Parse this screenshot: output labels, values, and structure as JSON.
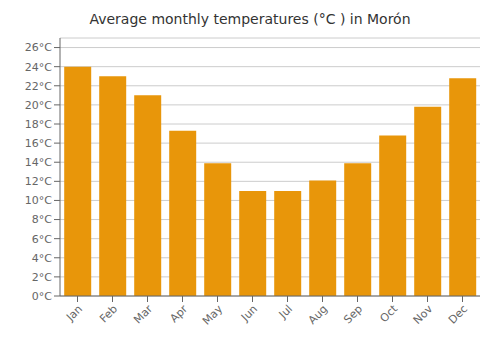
{
  "chart_data": {
    "type": "bar",
    "title": "Average monthly temperatures (°C ) in Morón",
    "categories": [
      "Jan",
      "Feb",
      "Mar",
      "Apr",
      "May",
      "Jun",
      "Jul",
      "Aug",
      "Sep",
      "Oct",
      "Nov",
      "Dec"
    ],
    "values": [
      24.0,
      23.0,
      21.0,
      17.3,
      13.9,
      11.0,
      11.0,
      12.1,
      13.9,
      16.8,
      19.8,
      22.8
    ],
    "color": "#E8960A",
    "ylim": [
      0,
      27
    ],
    "yticks": [
      {
        "value": 0,
        "label": "0°C"
      },
      {
        "value": 2,
        "label": "2°C"
      },
      {
        "value": 4,
        "label": "4°C"
      },
      {
        "value": 6,
        "label": "6°C"
      },
      {
        "value": 8,
        "label": "8°C"
      },
      {
        "value": 10,
        "label": "10°C"
      },
      {
        "value": 12,
        "label": "12°C"
      },
      {
        "value": 14,
        "label": "14°C"
      },
      {
        "value": 16,
        "label": "16°C"
      },
      {
        "value": 18,
        "label": "18°C"
      },
      {
        "value": 20,
        "label": "20°C"
      },
      {
        "value": 22,
        "label": "22°C"
      },
      {
        "value": 24,
        "label": "24°C"
      },
      {
        "value": 26,
        "label": "26°C"
      }
    ],
    "grid": true
  }
}
